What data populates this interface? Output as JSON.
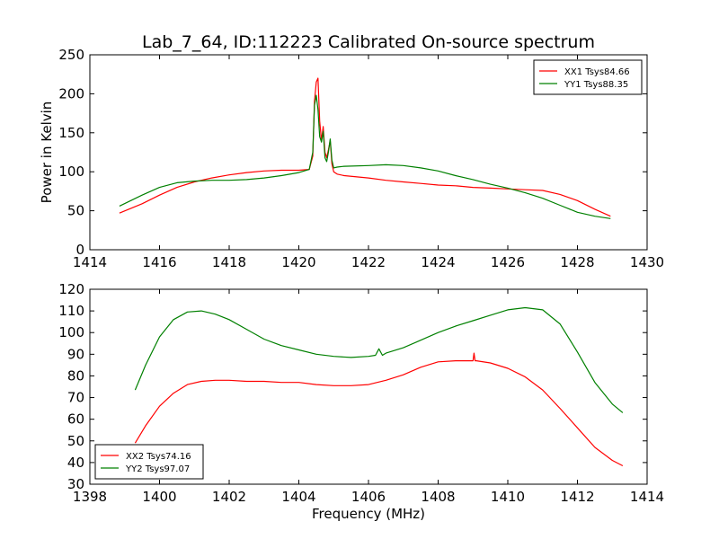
{
  "figure": {
    "title": "Lab_7_64, ID:112223 Calibrated On-source spectrum",
    "xlabel": "Frequency (MHz)"
  },
  "chart_data": [
    {
      "type": "line",
      "title": "Lab_7_64, ID:112223 Calibrated On-source spectrum",
      "xlabel": "",
      "ylabel": "Power in Kelvin",
      "xlim": [
        1414,
        1430
      ],
      "ylim": [
        0,
        250
      ],
      "xticks": [
        1414,
        1416,
        1418,
        1420,
        1422,
        1424,
        1426,
        1428,
        1430
      ],
      "yticks": [
        0,
        50,
        100,
        150,
        200,
        250
      ],
      "grid": false,
      "legend": "top-right",
      "series": [
        {
          "name": "XX1 Tsys84.66",
          "color": "#ff0000",
          "x": [
            1414.85,
            1415.5,
            1416,
            1416.5,
            1417,
            1417.5,
            1418,
            1418.5,
            1419,
            1419.5,
            1420,
            1420.3,
            1420.4,
            1420.45,
            1420.5,
            1420.55,
            1420.6,
            1420.65,
            1420.7,
            1420.75,
            1420.8,
            1420.85,
            1420.9,
            1420.95,
            1421,
            1421.1,
            1421.3,
            1422,
            1422.5,
            1423,
            1423.5,
            1424,
            1424.5,
            1425,
            1425.5,
            1426,
            1426.5,
            1427,
            1427.5,
            1428,
            1428.5,
            1428.95
          ],
          "y": [
            47,
            59,
            70,
            80,
            87,
            92,
            96,
            99,
            101,
            102,
            102,
            103,
            120,
            190,
            215,
            220,
            165,
            140,
            158,
            125,
            118,
            128,
            140,
            110,
            100,
            97,
            95,
            92,
            89,
            87,
            85,
            83,
            82,
            80,
            79,
            78,
            77,
            76,
            71,
            63,
            52,
            43
          ]
        },
        {
          "name": "YY1 Tsys88.35",
          "color": "#008000",
          "x": [
            1414.85,
            1415.5,
            1416,
            1416.5,
            1417,
            1417.5,
            1418,
            1418.5,
            1419,
            1419.5,
            1420,
            1420.3,
            1420.4,
            1420.45,
            1420.5,
            1420.55,
            1420.6,
            1420.65,
            1420.7,
            1420.75,
            1420.8,
            1420.85,
            1420.9,
            1420.95,
            1421,
            1421.1,
            1421.3,
            1422,
            1422.5,
            1423,
            1423.5,
            1424,
            1424.5,
            1425,
            1425.5,
            1426,
            1426.5,
            1427,
            1427.5,
            1428,
            1428.5,
            1428.95
          ],
          "y": [
            56,
            70,
            80,
            86,
            88,
            89,
            89,
            90,
            92,
            95,
            99,
            103,
            125,
            185,
            198,
            180,
            145,
            138,
            152,
            118,
            113,
            125,
            142,
            115,
            105,
            106,
            107,
            108,
            109,
            108,
            105,
            101,
            95,
            90,
            84,
            79,
            73,
            66,
            57,
            48,
            43,
            40
          ]
        }
      ]
    },
    {
      "type": "line",
      "title": "",
      "xlabel": "Frequency (MHz)",
      "ylabel": "",
      "xlim": [
        1398,
        1414
      ],
      "ylim": [
        30,
        120
      ],
      "xticks": [
        1398,
        1400,
        1402,
        1404,
        1406,
        1408,
        1410,
        1412,
        1414
      ],
      "yticks": [
        30,
        40,
        50,
        60,
        70,
        80,
        90,
        100,
        110,
        120
      ],
      "grid": false,
      "legend": "bottom-left",
      "series": [
        {
          "name": "XX2 Tsys74.16",
          "color": "#ff0000",
          "x": [
            1399.3,
            1399.6,
            1400,
            1400.4,
            1400.8,
            1401.2,
            1401.6,
            1402,
            1402.5,
            1403,
            1403.5,
            1404,
            1404.5,
            1405,
            1405.5,
            1406,
            1406.5,
            1407,
            1407.5,
            1408,
            1408.5,
            1409,
            1409.03,
            1409.06,
            1409.1,
            1409.5,
            1410,
            1410.5,
            1411,
            1411.5,
            1412,
            1412.5,
            1413,
            1413.3
          ],
          "y": [
            49,
            57,
            66,
            72,
            76,
            77.5,
            78,
            78,
            77.5,
            77.5,
            77,
            77,
            76,
            75.5,
            75.5,
            76,
            78,
            80.5,
            84,
            86.5,
            87,
            87,
            90.5,
            87,
            87,
            86,
            83.5,
            79.5,
            73.5,
            65,
            56,
            47,
            41,
            38.5
          ]
        },
        {
          "name": "YY2 Tsys97.07",
          "color": "#008000",
          "x": [
            1399.3,
            1399.6,
            1400,
            1400.4,
            1400.8,
            1401.2,
            1401.6,
            1402,
            1402.5,
            1403,
            1403.5,
            1404,
            1404.5,
            1405,
            1405.5,
            1406,
            1406.2,
            1406.3,
            1406.4,
            1406.5,
            1407,
            1407.5,
            1408,
            1408.5,
            1409,
            1409.5,
            1410,
            1410.5,
            1411,
            1411.5,
            1412,
            1412.5,
            1413,
            1413.3
          ],
          "y": [
            73.5,
            85,
            98,
            106,
            109.5,
            110,
            108.5,
            106,
            101.5,
            97,
            94,
            92,
            90,
            89,
            88.5,
            89,
            89.5,
            92.5,
            89.5,
            90.5,
            93,
            96.5,
            100,
            103,
            105.5,
            108,
            110.5,
            111.5,
            110.5,
            104,
            91,
            77,
            67,
            63
          ]
        }
      ]
    }
  ]
}
